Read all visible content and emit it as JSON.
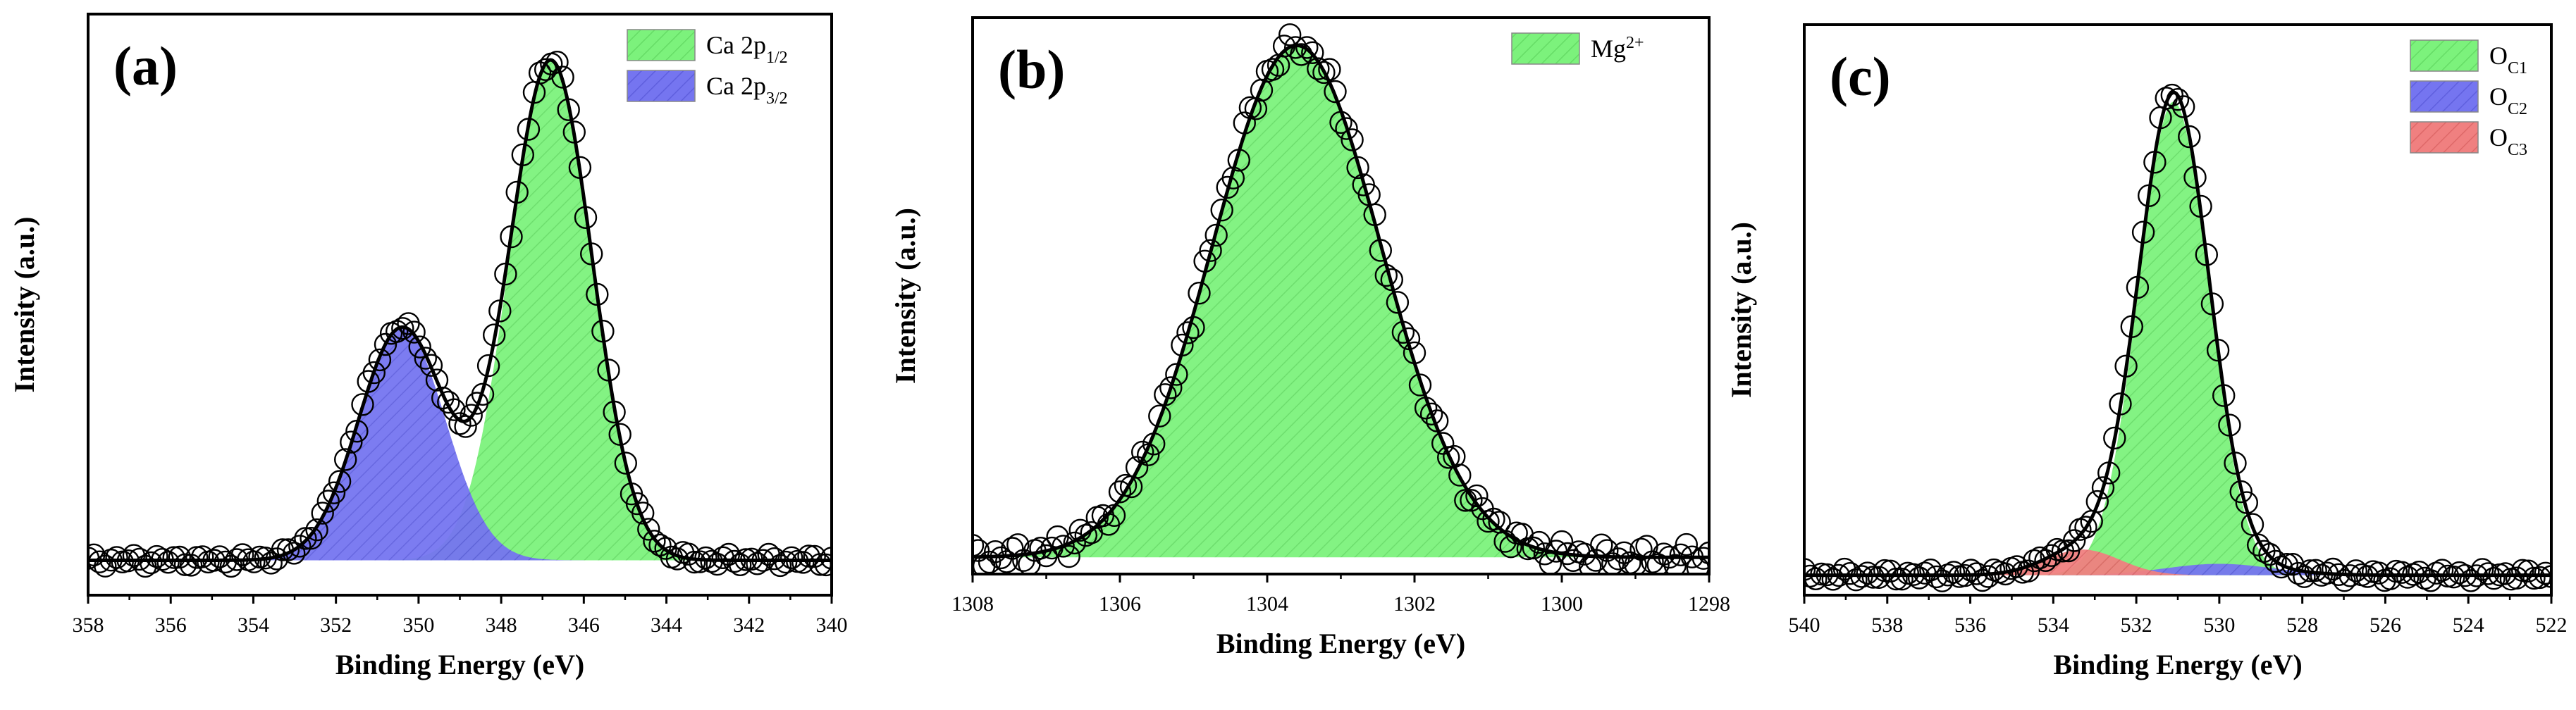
{
  "figure": {
    "chart_data": [
      {
        "type": "xps-spectrum",
        "panel_label": "(a)",
        "xlabel": "Binding Energy (eV)",
        "ylabel": "Intensity (a.u.)",
        "xlim": [
          358,
          340
        ],
        "ylim": [
          0,
          1.0
        ],
        "x_ticks": [
          "358",
          "356",
          "354",
          "352",
          "350",
          "348",
          "346",
          "344",
          "342",
          "340"
        ],
        "x_tick_values": [
          358,
          356,
          354,
          352,
          350,
          348,
          346,
          344,
          342,
          340
        ],
        "baseline": 0.06,
        "components": [
          {
            "name": "Ca 2p1/2",
            "center": 346.8,
            "height": 0.86,
            "width": 1.0,
            "color": "#7CF27C",
            "hatch": "#4CC24C"
          },
          {
            "name": "Ca 2p3/2",
            "center": 350.4,
            "height": 0.4,
            "width": 1.05,
            "color": "#7575F0",
            "hatch": "#4444C8"
          }
        ],
        "legend": {
          "position": "top-right",
          "entries": [
            {
              "name": "Ca 2p",
              "subscript": "1/2",
              "color": "#7CF27C"
            },
            {
              "name": "Ca 2p",
              "subscript": "3/2",
              "color": "#7575F0"
            }
          ]
        },
        "observed_marker": "open-circle"
      },
      {
        "type": "xps-spectrum",
        "panel_label": "(b)",
        "xlabel": "Binding Energy (eV)",
        "ylabel": "Intensity (a.u.)",
        "xlim": [
          1308,
          1298
        ],
        "ylim": [
          0,
          1.0
        ],
        "x_ticks": [
          "1308",
          "1306",
          "1304",
          "1302",
          "1300",
          "1298"
        ],
        "x_tick_values": [
          1308,
          1306,
          1304,
          1302,
          1300,
          1298
        ],
        "baseline": 0.03,
        "components": [
          {
            "name": "Mg2+",
            "center": 1303.6,
            "height": 0.92,
            "width": 1.15,
            "color": "#7CF27C",
            "hatch": "#4CC24C"
          }
        ],
        "legend": {
          "position": "top-right",
          "entries": [
            {
              "name": "Mg",
              "superscript": "2+",
              "color": "#7CF27C"
            }
          ]
        },
        "observed_marker": "open-circle"
      },
      {
        "type": "xps-spectrum",
        "panel_label": "(c)",
        "xlabel": "Binding Energy (eV)",
        "ylabel": "Intensity (a.u.)",
        "xlim": [
          540,
          522
        ],
        "ylim": [
          0,
          1.0
        ],
        "x_ticks": [
          "540",
          "538",
          "536",
          "534",
          "532",
          "530",
          "528",
          "526",
          "524",
          "522"
        ],
        "x_tick_values": [
          540,
          538,
          536,
          534,
          532,
          530,
          528,
          526,
          524,
          522
        ],
        "baseline": 0.035,
        "components": [
          {
            "name": "OC1",
            "center": 531.1,
            "height": 0.83,
            "width": 0.85,
            "color": "#7CF27C",
            "hatch": "#4CC24C"
          },
          {
            "name": "OC2",
            "center": 530.0,
            "height": 0.02,
            "width": 1.3,
            "color": "#7575F0",
            "hatch": "#4444C8"
          },
          {
            "name": "OC3",
            "center": 533.3,
            "height": 0.045,
            "width": 0.9,
            "color": "#F08080",
            "hatch": "#C84C4C"
          }
        ],
        "legend": {
          "position": "top-right",
          "entries": [
            {
              "name": "O",
              "subscript": "C1",
              "color": "#7CF27C"
            },
            {
              "name": "O",
              "subscript": "C2",
              "color": "#7575F0"
            },
            {
              "name": "O",
              "subscript": "C3",
              "color": "#F08080"
            }
          ]
        },
        "observed_marker": "open-circle"
      }
    ]
  }
}
